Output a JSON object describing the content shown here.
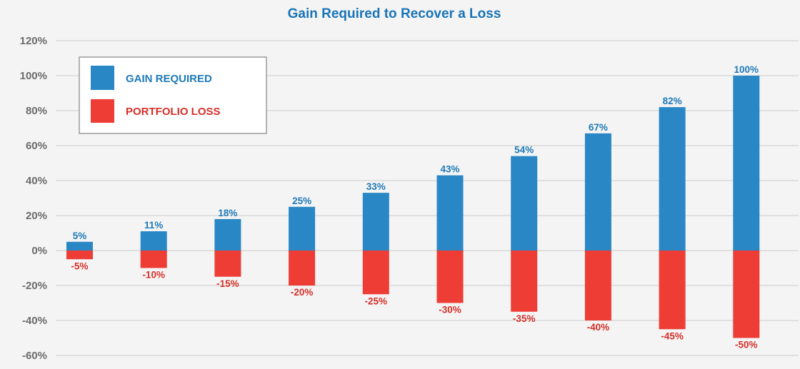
{
  "chart_data": {
    "type": "bar",
    "title": "Gain Required to Recover a Loss",
    "xlabel": "",
    "ylabel": "",
    "ylim": [
      -60,
      120
    ],
    "yticks": [
      120,
      100,
      80,
      60,
      40,
      20,
      0,
      -20,
      -40,
      -60
    ],
    "ytick_labels": [
      "120%",
      "100%",
      "80%",
      "60%",
      "40%",
      "20%",
      "0%",
      "-20%",
      "-40%",
      "-60%"
    ],
    "grid": true,
    "legend_position": "top-left",
    "series": [
      {
        "name": "GAIN REQUIRED",
        "color": "#2987c6",
        "values": [
          5,
          11,
          18,
          25,
          33,
          43,
          54,
          67,
          82,
          100
        ],
        "labels": [
          "5%",
          "11%",
          "18%",
          "25%",
          "33%",
          "43%",
          "54%",
          "67%",
          "82%",
          "100%"
        ]
      },
      {
        "name": "PORTFOLIO LOSS",
        "color": "#ee3d35",
        "values": [
          -5,
          -10,
          -15,
          -20,
          -25,
          -30,
          -35,
          -40,
          -45,
          -50
        ],
        "labels": [
          "-5%",
          "-10%",
          "-15%",
          "-20%",
          "-25%",
          "-30%",
          "-35%",
          "-40%",
          "-45%",
          "-50%"
        ]
      }
    ]
  },
  "colors": {
    "title": "#1a75b8",
    "gain": "#2987c6",
    "gain_label": "#1e7ab8",
    "loss": "#ee3d35",
    "loss_label": "#d62f28",
    "grid": "#d3d3d3",
    "tick": "#6b6b6b",
    "legend_border": "#9a9a9a"
  }
}
